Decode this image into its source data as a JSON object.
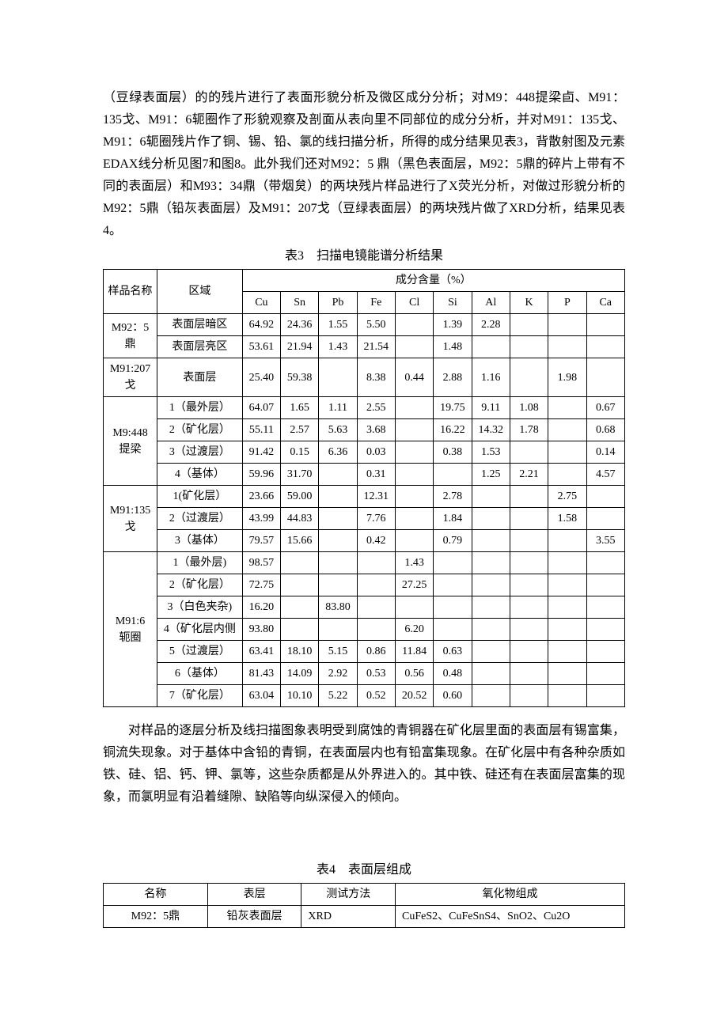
{
  "para1": "（豆绿表面层）的的残片进行了表面形貌分析及微区成分分析；对M9：448提梁卣、M91：135戈、M91：6轭圈作了形貌观察及剖面从表向里不同部位的成分分析，并对M91：135戈、M91：6轭圈残片作了铜、锡、铅、氯的线扫描分析，所得的成分结果见表3，背散射图及元素EDAX线分析见图7和图8。此外我们还对M92：5 鼎（黑色表面层，M92：5鼎的碎片上带有不同的表面层）和M93：34鼎（带烟炱）的两块残片样品进行了X荧光分析，对做过形貌分析的M92：5鼎（铅灰表面层）及M91：207戈（豆绿表面层）的两块残片做了XRD分析，结果见表4。",
  "table3_title": "表3　扫描电镜能谱分析结果",
  "table3": {
    "hdr_sample": "样品名称",
    "hdr_region": "区域",
    "hdr_comp": "成分含量（%）",
    "cols": {
      "c0": "Cu",
      "c1": "Sn",
      "c2": "Pb",
      "c3": "Fe",
      "c4": "Cl",
      "c5": "Si",
      "c6": "Al",
      "c7": "K",
      "c8": "P",
      "c9": "Ca"
    },
    "r": [
      {
        "sample": "M92：5\n鼎",
        "span": 2,
        "region": "表面层暗区",
        "v": [
          "64.92",
          "24.36",
          "1.55",
          "5.50",
          "",
          "1.39",
          "2.28",
          "",
          "",
          ""
        ]
      },
      {
        "region": "表面层亮区",
        "v": [
          "53.61",
          "21.94",
          "1.43",
          "21.54",
          "",
          "1.48",
          "",
          "",
          "",
          ""
        ]
      },
      {
        "sample": "M91:207\n戈",
        "span": 1,
        "region": "表面层",
        "v": [
          "25.40",
          "59.38",
          "",
          "8.38",
          "0.44",
          "2.88",
          "1.16",
          "",
          "1.98",
          ""
        ]
      },
      {
        "sample": "M9:448\n提梁",
        "span": 4,
        "region": "1（最外层）",
        "v": [
          "64.07",
          "1.65",
          "1.11",
          "2.55",
          "",
          "19.75",
          "9.11",
          "1.08",
          "",
          "0.67"
        ]
      },
      {
        "region": "2（矿化层）",
        "v": [
          "55.11",
          "2.57",
          "5.63",
          "3.68",
          "",
          "16.22",
          "14.32",
          "1.78",
          "",
          "0.68"
        ]
      },
      {
        "region": "3（过渡层）",
        "v": [
          "91.42",
          "0.15",
          "6.36",
          "0.03",
          "",
          "0.38",
          "1.53",
          "",
          "",
          "0.14"
        ]
      },
      {
        "region": "4（基体）",
        "v": [
          "59.96",
          "31.70",
          "",
          "0.31",
          "",
          "",
          "1.25",
          "2.21",
          "",
          "4.57"
        ]
      },
      {
        "sample": "M91:135\n戈",
        "span": 3,
        "region": "1(矿化层）",
        "v": [
          "23.66",
          "59.00",
          "",
          "12.31",
          "",
          "2.78",
          "",
          "",
          "2.75",
          ""
        ]
      },
      {
        "region": "2（过渡层）",
        "v": [
          "43.99",
          "44.83",
          "",
          "7.76",
          "",
          "1.84",
          "",
          "",
          "1.58",
          ""
        ]
      },
      {
        "region": "3（基体）",
        "v": [
          "79.57",
          "15.66",
          "",
          "0.42",
          "",
          "0.79",
          "",
          "",
          "",
          "3.55"
        ]
      },
      {
        "sample": "M91:6\n轭圈",
        "span": 7,
        "region": "1（最外层)",
        "v": [
          "98.57",
          "",
          "",
          "",
          "1.43",
          "",
          "",
          "",
          "",
          ""
        ]
      },
      {
        "region": "2（矿化层）",
        "v": [
          "72.75",
          "",
          "",
          "",
          "27.25",
          "",
          "",
          "",
          "",
          ""
        ]
      },
      {
        "region": "3（白色夹杂)",
        "v": [
          "16.20",
          "",
          "83.80",
          "",
          "",
          "",
          "",
          "",
          "",
          ""
        ]
      },
      {
        "region": "4（矿化层内侧",
        "v": [
          "93.80",
          "",
          "",
          "",
          "6.20",
          "",
          "",
          "",
          "",
          ""
        ]
      },
      {
        "region": "5（过渡层）",
        "v": [
          "63.41",
          "18.10",
          "5.15",
          "0.86",
          "11.84",
          "0.63",
          "",
          "",
          "",
          ""
        ]
      },
      {
        "region": "6（基体）",
        "v": [
          "81.43",
          "14.09",
          "2.92",
          "0.53",
          "0.56",
          "0.48",
          "",
          "",
          "",
          ""
        ]
      },
      {
        "region": "7（矿化层）",
        "v": [
          "63.04",
          "10.10",
          "5.22",
          "0.52",
          "20.52",
          "0.60",
          "",
          "",
          "",
          ""
        ]
      }
    ]
  },
  "para2": "对样品的逐层分析及线扫描图象表明受到腐蚀的青铜器在矿化层里面的表面层有锡富集，铜流失现象。对于基体中含铅的青铜，在表面层内也有铅富集现象。在矿化层中有各种杂质如铁、硅、铝、钙、钾、氯等，这些杂质都是从外界进入的。其中铁、硅还有在表面层富集的现象，而氯明显有沿着缝隙、缺陷等向纵深侵入的倾向。",
  "table4_title": "表4　表面层组成",
  "table4": {
    "h": {
      "c0": "名称",
      "c1": "表层",
      "c2": "测试方法",
      "c3": "氧化物组成"
    },
    "r1": {
      "c0": "M92：5鼎",
      "c1": "铅灰表面层",
      "c2": "XRD",
      "c3": "CuFeS2、CuFeSnS4、SnO2、Cu2O"
    }
  }
}
